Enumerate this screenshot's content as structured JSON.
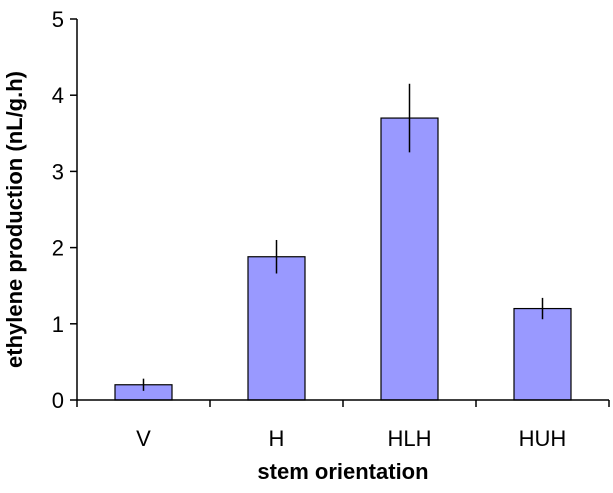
{
  "chart_data": {
    "type": "bar",
    "title": "",
    "xlabel": "stem orientation",
    "ylabel": "ethylene production (nL/g.h)",
    "categories": [
      "V",
      "H",
      "HLH",
      "HUH"
    ],
    "values": [
      0.2,
      1.88,
      3.7,
      1.2
    ],
    "error": [
      0.08,
      0.22,
      0.45,
      0.14
    ],
    "ylim": [
      0,
      5
    ],
    "yticks": [
      0,
      1,
      2,
      3,
      4,
      5
    ],
    "grid": false,
    "legend": "none",
    "bar_color": "#9999ff",
    "bar_edge_color": "#000000"
  }
}
